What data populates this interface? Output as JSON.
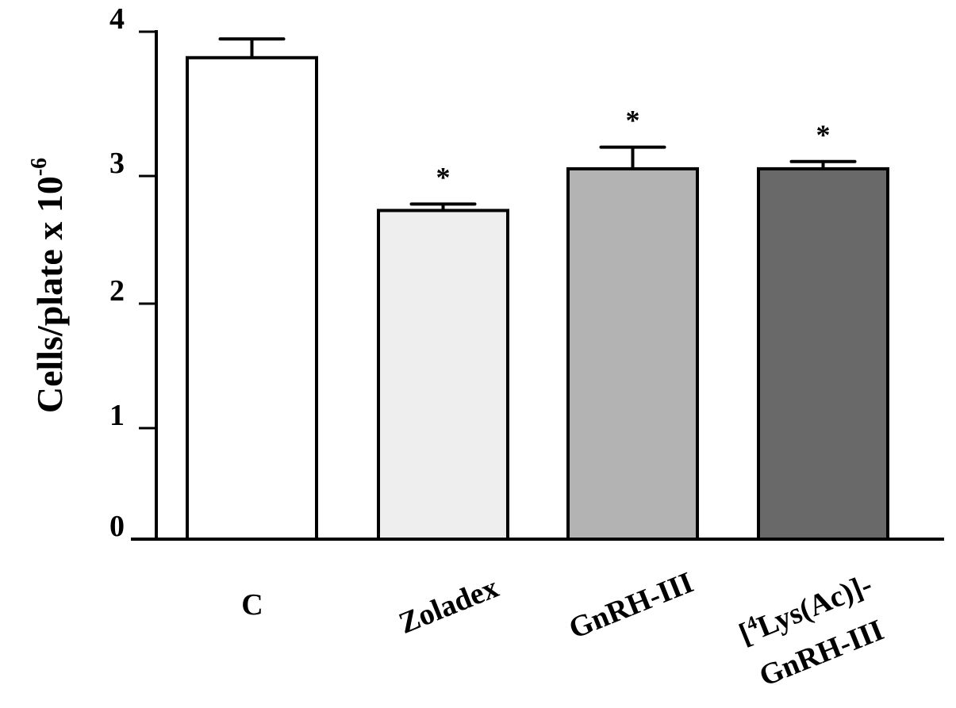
{
  "chart_data": {
    "type": "bar",
    "title": "",
    "ylabel": "Cells/plate x 10",
    "ylabel_superscript": "-6",
    "ylim": [
      0,
      4
    ],
    "yticks": [
      0,
      1,
      2,
      3,
      4
    ],
    "ytick_labels": [
      "0",
      "1",
      "2",
      "3",
      "4"
    ],
    "categories": [
      "C",
      "Zoladex",
      "GnRH-III",
      "[4Lys(Ac)]-GnRH-III"
    ],
    "category_label_lines": [
      [
        "C"
      ],
      [
        "Zoladex"
      ],
      [
        "GnRH-III"
      ],
      [
        "[",
        "4",
        "Lys(Ac)]-",
        "GnRH-III"
      ]
    ],
    "values": [
      3.82,
      2.73,
      3.05,
      3.05
    ],
    "errors": [
      0.13,
      0.05,
      0.15,
      0.05
    ],
    "annotations": [
      "",
      "*",
      "*",
      "*"
    ],
    "bar_colors": [
      "#ffffff",
      "#eeeeee",
      "#b3b3b3",
      "#696969"
    ],
    "edge_color": "#000000",
    "grid": false
  }
}
